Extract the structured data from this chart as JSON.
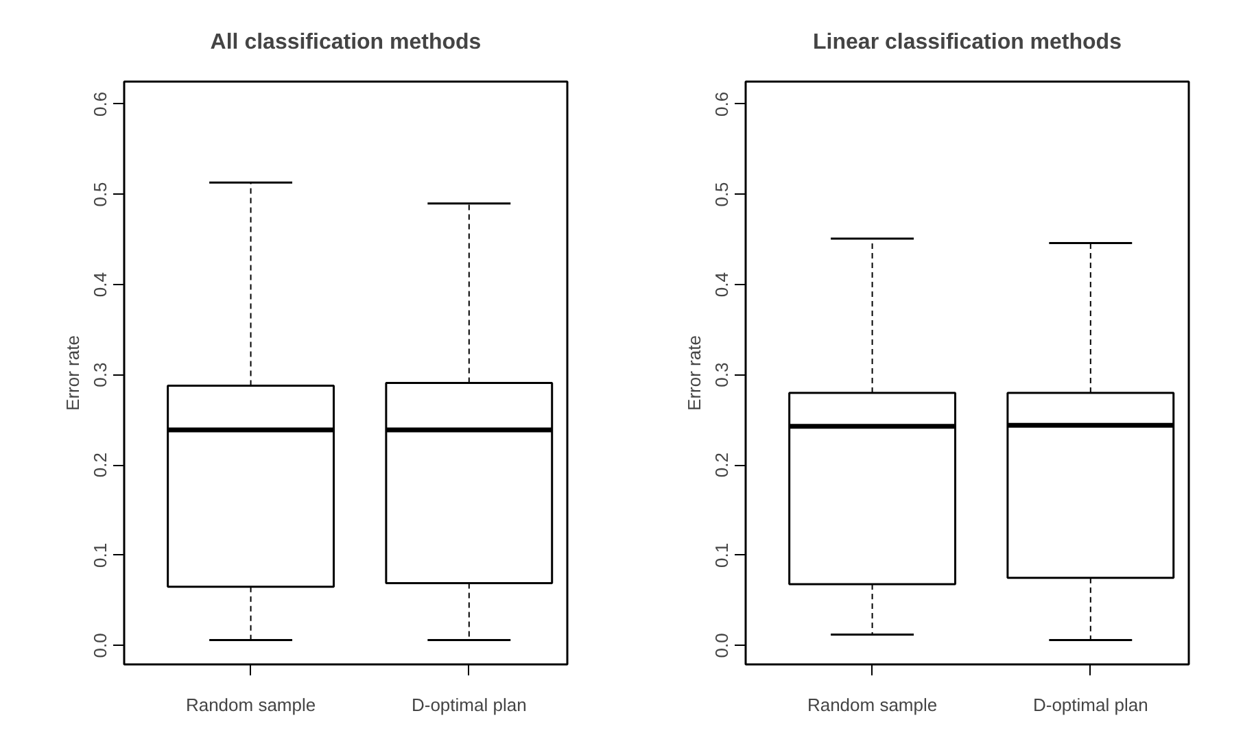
{
  "chart_data": [
    {
      "type": "box",
      "title": "All classification methods",
      "ylabel": "Error rate",
      "categories": [
        "Random sample",
        "D-optimal plan"
      ],
      "ylim": [
        -0.021,
        0.625
      ],
      "yticks": [
        {
          "value": 0,
          "label": "0.0"
        },
        0.1,
        0.2,
        0.3,
        0.4,
        0.5,
        0.6
      ],
      "grid": false,
      "color": "#ffffff",
      "boxes": [
        {
          "low": 0.006,
          "q1": 0.065,
          "median": 0.239,
          "q3": 0.288,
          "high": 0.513
        },
        {
          "low": 0.006,
          "q1": 0.069,
          "median": 0.239,
          "q3": 0.291,
          "high": 0.49
        }
      ]
    },
    {
      "type": "box",
      "title": "Linear classification methods",
      "ylabel": "Error rate",
      "categories": [
        "Random sample",
        "D-optimal plan"
      ],
      "ylim": [
        -0.021,
        0.625
      ],
      "yticks": [
        {
          "value": 0,
          "label": "0.0"
        },
        0.1,
        0.2,
        0.3,
        0.4,
        0.5,
        0.6
      ],
      "grid": false,
      "color": "#ffffff",
      "boxes": [
        {
          "low": 0.012,
          "q1": 0.068,
          "median": 0.243,
          "q3": 0.28,
          "high": 0.451
        },
        {
          "low": 0.006,
          "q1": 0.075,
          "median": 0.244,
          "q3": 0.28,
          "high": 0.446
        }
      ]
    }
  ]
}
